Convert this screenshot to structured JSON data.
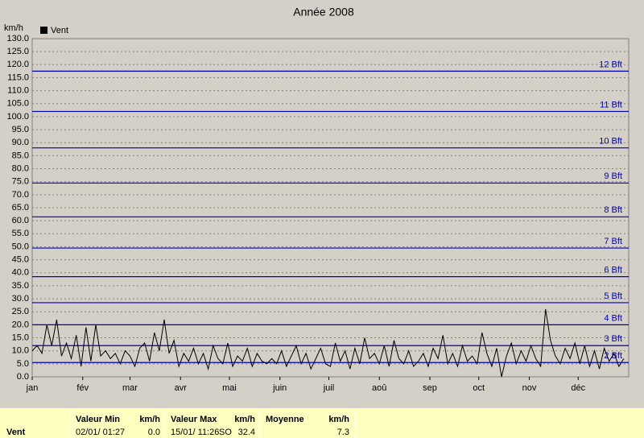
{
  "chart_data": {
    "type": "line",
    "title": "Année 2008",
    "y_label": "km/h",
    "legend": "top-left",
    "grid": true,
    "xlim": [
      1,
      367
    ],
    "xticks": [
      {
        "value": 1,
        "label": "jan"
      },
      {
        "value": 32,
        "label": "fév"
      },
      {
        "value": 61,
        "label": "mar"
      },
      {
        "value": 92,
        "label": "avr"
      },
      {
        "value": 122,
        "label": "mai"
      },
      {
        "value": 153,
        "label": "juin"
      },
      {
        "value": 183,
        "label": "juil"
      },
      {
        "value": 214,
        "label": "aoû"
      },
      {
        "value": 245,
        "label": "sep"
      },
      {
        "value": 275,
        "label": "oct"
      },
      {
        "value": 306,
        "label": "nov"
      },
      {
        "value": 336,
        "label": "déc"
      }
    ],
    "ylim": [
      0,
      130
    ],
    "yticks": [
      {
        "value": 0,
        "label": "0.0"
      },
      {
        "value": 5,
        "label": "5.0"
      },
      {
        "value": 10,
        "label": "10.0"
      },
      {
        "value": 15,
        "label": "15.0"
      },
      {
        "value": 20,
        "label": "20.0"
      },
      {
        "value": 25,
        "label": "25.0"
      },
      {
        "value": 30,
        "label": "30.0"
      },
      {
        "value": 35,
        "label": "35.0"
      },
      {
        "value": 40,
        "label": "40.0"
      },
      {
        "value": 45,
        "label": "45.0"
      },
      {
        "value": 50,
        "label": "50.0"
      },
      {
        "value": 55,
        "label": "55.0"
      },
      {
        "value": 60,
        "label": "60.0"
      },
      {
        "value": 65,
        "label": "65.0"
      },
      {
        "value": 70,
        "label": "70.0"
      },
      {
        "value": 75,
        "label": "75.0"
      },
      {
        "value": 80,
        "label": "80.0"
      },
      {
        "value": 85,
        "label": "85.0"
      },
      {
        "value": 90,
        "label": "90.0"
      },
      {
        "value": 95,
        "label": "95.0"
      },
      {
        "value": 100,
        "label": "100.0"
      },
      {
        "value": 105,
        "label": "105.0"
      },
      {
        "value": 110,
        "label": "110.0"
      },
      {
        "value": 115,
        "label": "115.0"
      },
      {
        "value": 120,
        "label": "120.0"
      },
      {
        "value": 125,
        "label": "125.0"
      },
      {
        "value": 130,
        "label": "130.0"
      }
    ],
    "reference_lines": [
      {
        "value": 5.5,
        "label": "2 Bft"
      },
      {
        "value": 12,
        "label": "3 Bft"
      },
      {
        "value": 20,
        "label": "4 Bft"
      },
      {
        "value": 28.5,
        "label": "5 Bft"
      },
      {
        "value": 38.5,
        "label": "6 Bft"
      },
      {
        "value": 49.5,
        "label": "7 Bft"
      },
      {
        "value": 61.5,
        "label": "8 Bft"
      },
      {
        "value": 74.5,
        "label": "9 Bft"
      },
      {
        "value": 88,
        "label": "10 Bft"
      },
      {
        "value": 102,
        "label": "11 Bft"
      },
      {
        "value": 117.5,
        "label": "12 Bft"
      }
    ],
    "reference_color": "#0000c0",
    "x": [
      1,
      4,
      7,
      10,
      13,
      16,
      19,
      22,
      25,
      28,
      31,
      34,
      37,
      40,
      43,
      46,
      49,
      52,
      55,
      58,
      61,
      64,
      67,
      70,
      73,
      76,
      79,
      82,
      85,
      88,
      91,
      94,
      97,
      100,
      103,
      106,
      109,
      112,
      115,
      118,
      121,
      124,
      127,
      130,
      133,
      136,
      139,
      142,
      145,
      148,
      151,
      154,
      157,
      160,
      163,
      166,
      169,
      172,
      175,
      178,
      181,
      184,
      187,
      190,
      193,
      196,
      199,
      202,
      205,
      208,
      211,
      214,
      217,
      220,
      223,
      226,
      229,
      232,
      235,
      238,
      241,
      244,
      247,
      250,
      253,
      256,
      259,
      262,
      265,
      268,
      271,
      274,
      277,
      280,
      283,
      286,
      289,
      292,
      295,
      298,
      301,
      304,
      307,
      310,
      313,
      316,
      319,
      322,
      325,
      328,
      331,
      334,
      337,
      340,
      343,
      346,
      349,
      352,
      355,
      358,
      361,
      364
    ],
    "series": [
      {
        "name": "Vent",
        "color": "#000000",
        "values": [
          10,
          12,
          9,
          20,
          12,
          22,
          8,
          13,
          7,
          16,
          4,
          19,
          6,
          20,
          8,
          10,
          7,
          9,
          5,
          10,
          8,
          4,
          11,
          13,
          6,
          17,
          10,
          22,
          9,
          14,
          4,
          9,
          6,
          11,
          5,
          9,
          3,
          12,
          7,
          5,
          13,
          4,
          8,
          6,
          11,
          4,
          9,
          6,
          5,
          7,
          5,
          10,
          4,
          8,
          12,
          5,
          9,
          3,
          7,
          11,
          5,
          4,
          13,
          6,
          10,
          3,
          11,
          5,
          15,
          7,
          9,
          5,
          12,
          4,
          14,
          7,
          5,
          10,
          4,
          6,
          9,
          4,
          11,
          7,
          16,
          5,
          9,
          4,
          12,
          6,
          8,
          5,
          17,
          9,
          4,
          11,
          0,
          8,
          13,
          5,
          10,
          6,
          12,
          7,
          4,
          26,
          14,
          8,
          5,
          11,
          7,
          13,
          5,
          12,
          4,
          10,
          3,
          11,
          6,
          9,
          4,
          7
        ]
      }
    ]
  },
  "summary": {
    "label": "Vent",
    "columns": [
      {
        "header": "Valeur Min",
        "unit": "km/h",
        "date": "02/01/ 01:27",
        "value": "0.0"
      },
      {
        "header": "Valeur Max",
        "unit": "km/h",
        "date": "15/01/ 11:26",
        "direction": "SO",
        "value": "32.4"
      },
      {
        "header": "Moyenne",
        "unit": "km/h",
        "value": "7.3"
      }
    ]
  }
}
